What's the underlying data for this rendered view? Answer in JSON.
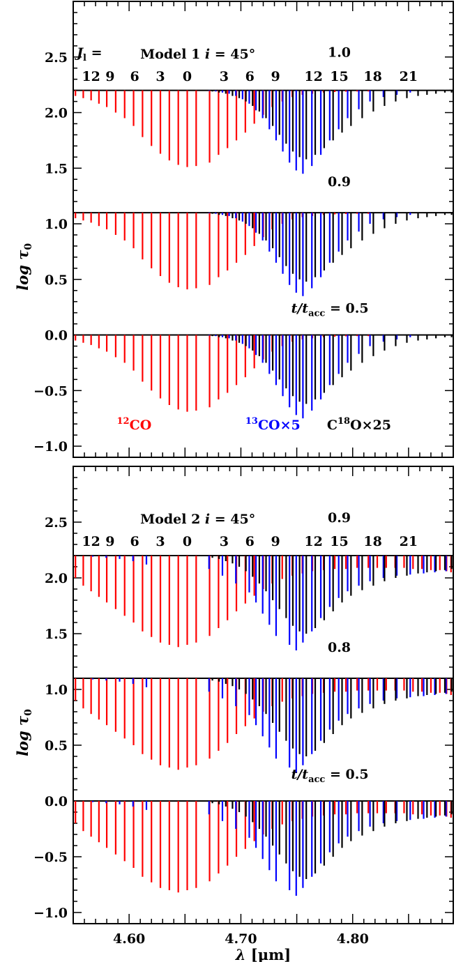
{
  "chart_data": [
    {
      "type": "line",
      "panel": "top",
      "model_label": "Model 1",
      "inclination_label": "i = 45°",
      "jl_prefix": "J",
      "jl_sub": "l",
      "jl_suffix": " =",
      "jl_ticks": [
        "12",
        "9",
        "6",
        "3",
        "0",
        "3",
        "6",
        "9",
        "12",
        "15",
        "18",
        "21"
      ],
      "jl_ticks_x_um": [
        4.566,
        4.583,
        4.605,
        4.628,
        4.652,
        4.685,
        4.708,
        4.731,
        4.765,
        4.788,
        4.818,
        4.85
      ],
      "xlabel_symbol": "λ",
      "xlabel_unit": "[μm]",
      "ylabel": "log τ0",
      "ylabel_symbol": "log τ",
      "ylabel_sub": "0",
      "xlim": [
        4.55,
        4.89
      ],
      "ylim": [
        -1.1,
        3.0
      ],
      "yticks": [
        "−1.0",
        "−0.5",
        "0.0",
        "0.5",
        "1.0",
        "1.5",
        "2.0",
        "2.5"
      ],
      "yticks_values": [
        -1.0,
        -0.5,
        0.0,
        0.5,
        1.0,
        1.5,
        2.0,
        2.5
      ],
      "stacks": [
        {
          "label": "1.0",
          "baseline": 2.2
        },
        {
          "label": "0.9",
          "baseline": 1.1
        },
        {
          "label": "0.5",
          "label_prefix": "t/t",
          "label_sub": "acc",
          "label_eq": " = ",
          "baseline": 0.0
        }
      ],
      "depths": {
        "co12": [
          0.05,
          0.07,
          0.09,
          0.12,
          0.15,
          0.2,
          0.25,
          0.32,
          0.42,
          0.5,
          0.57,
          0.63,
          0.67,
          0.69,
          0.68,
          0.65,
          0.58,
          0.52,
          0.45,
          0.38,
          0.3,
          0.22,
          0.15,
          0.1,
          0.06,
          0.04,
          0.03,
          0.02,
          0.015,
          0.012,
          0.01,
          0.01
        ],
        "co12_x_um": [
          4.552,
          4.559,
          4.566,
          4.573,
          4.58,
          4.588,
          4.596,
          4.604,
          4.612,
          4.62,
          4.628,
          4.636,
          4.644,
          4.652,
          4.66,
          4.672,
          4.68,
          4.688,
          4.696,
          4.704,
          4.712,
          4.72,
          4.728,
          4.737,
          4.746,
          4.755,
          4.764,
          4.774,
          4.784,
          4.794,
          4.804,
          4.814
        ],
        "co13": [
          0.005,
          0.01,
          0.02,
          0.03,
          0.05,
          0.08,
          0.12,
          0.18,
          0.25,
          0.35,
          0.45,
          0.55,
          0.65,
          0.72,
          0.75,
          0.68,
          0.58,
          0.45,
          0.35,
          0.25,
          0.17,
          0.1,
          0.06,
          0.04,
          0.02
        ],
        "co13_x_um": [
          4.67,
          4.676,
          4.682,
          4.688,
          4.694,
          4.7,
          4.706,
          4.712,
          4.718,
          4.724,
          4.73,
          4.736,
          4.742,
          4.748,
          4.754,
          4.762,
          4.77,
          4.778,
          4.786,
          4.794,
          4.804,
          4.814,
          4.826,
          4.838,
          4.85
        ],
        "c18o": [
          0.01,
          0.02,
          0.03,
          0.05,
          0.07,
          0.1,
          0.14,
          0.19,
          0.25,
          0.32,
          0.4,
          0.48,
          0.55,
          0.6,
          0.62,
          0.58,
          0.52,
          0.45,
          0.38,
          0.32,
          0.25,
          0.19,
          0.14,
          0.1,
          0.07,
          0.05,
          0.04,
          0.03,
          0.02,
          0.02
        ],
        "c18o_x_um": [
          4.676,
          4.682,
          4.688,
          4.694,
          4.7,
          4.706,
          4.712,
          4.718,
          4.724,
          4.73,
          4.736,
          4.742,
          4.748,
          4.754,
          4.76,
          4.768,
          4.776,
          4.784,
          4.792,
          4.8,
          4.81,
          4.82,
          4.83,
          4.84,
          4.85,
          4.86,
          4.868,
          4.876,
          4.884,
          4.89
        ]
      },
      "legend": {
        "co12": {
          "sup": "12",
          "text": "CO",
          "color": "#ff0000"
        },
        "co13": {
          "sup": "13",
          "text": "CO×5",
          "color": "#0000ff"
        },
        "c18o": {
          "pre": "C",
          "sup": "18",
          "text": "O×25",
          "color": "#000000"
        }
      }
    },
    {
      "type": "line",
      "panel": "bottom",
      "model_label": "Model 2",
      "inclination_label": "i = 45°",
      "jl_ticks": [
        "12",
        "9",
        "6",
        "3",
        "0",
        "3",
        "6",
        "9",
        "12",
        "15",
        "18",
        "21"
      ],
      "jl_ticks_x_um": [
        4.566,
        4.583,
        4.605,
        4.628,
        4.652,
        4.685,
        4.708,
        4.731,
        4.765,
        4.788,
        4.818,
        4.85
      ],
      "xlabel_symbol": "λ",
      "xlabel_unit": "[μm]",
      "ylabel": "log τ0",
      "ylabel_symbol": "log τ",
      "ylabel_sub": "0",
      "xlim": [
        4.55,
        4.89
      ],
      "ylim": [
        -1.1,
        3.0
      ],
      "xticks": [
        "4.60",
        "4.70",
        "4.80"
      ],
      "xticks_values": [
        4.6,
        4.7,
        4.8
      ],
      "yticks": [
        "−1.0",
        "−0.5",
        "0.0",
        "0.5",
        "1.0",
        "1.5",
        "2.0",
        "2.5"
      ],
      "yticks_values": [
        -1.0,
        -0.5,
        0.0,
        0.5,
        1.0,
        1.5,
        2.0,
        2.5
      ],
      "stacks": [
        {
          "label": "0.9",
          "baseline": 2.2
        },
        {
          "label": "0.8",
          "baseline": 1.1
        },
        {
          "label": "0.5",
          "label_prefix": "t/t",
          "label_sub": "acc",
          "label_eq": " = ",
          "baseline": 0.0
        }
      ],
      "depths": {
        "co12": [
          0.2,
          0.27,
          0.32,
          0.37,
          0.42,
          0.48,
          0.54,
          0.6,
          0.68,
          0.73,
          0.78,
          0.8,
          0.82,
          0.8,
          0.78,
          0.72,
          0.65,
          0.58,
          0.5,
          0.43,
          0.36,
          0.3,
          0.25,
          0.21,
          0.18,
          0.16,
          0.14,
          0.13,
          0.12,
          0.12,
          0.11,
          0.11,
          0.11,
          0.11,
          0.11,
          0.11,
          0.12,
          0.12,
          0.13,
          0.13,
          0.14,
          0.15,
          0.16
        ],
        "co12_x_um": [
          4.552,
          4.559,
          4.566,
          4.573,
          4.58,
          4.588,
          4.596,
          4.604,
          4.612,
          4.62,
          4.628,
          4.636,
          4.644,
          4.652,
          4.66,
          4.672,
          4.68,
          4.688,
          4.696,
          4.704,
          4.712,
          4.72,
          4.728,
          4.737,
          4.746,
          4.755,
          4.764,
          4.774,
          4.784,
          4.794,
          4.804,
          4.814,
          4.822,
          4.83,
          4.838,
          4.846,
          4.854,
          4.862,
          4.87,
          4.878,
          4.884,
          4.888,
          4.89
        ],
        "co13": [
          0.01,
          0.02,
          0.03,
          0.05,
          0.08,
          0.12,
          0.18,
          0.25,
          0.33,
          0.42,
          0.52,
          0.62,
          0.72,
          0.8,
          0.85,
          0.78,
          0.68,
          0.56,
          0.46,
          0.38,
          0.32,
          0.27,
          0.23,
          0.2,
          0.18,
          0.17,
          0.16,
          0.15,
          0.14,
          0.13
        ],
        "co13_x_um": [
          4.566,
          4.578,
          4.59,
          4.602,
          4.614,
          4.67,
          4.682,
          4.694,
          4.706,
          4.712,
          4.718,
          4.724,
          4.73,
          4.742,
          4.748,
          4.754,
          4.762,
          4.77,
          4.778,
          4.786,
          4.794,
          4.804,
          4.814,
          4.826,
          4.838,
          4.85,
          4.862,
          4.872,
          4.882,
          4.89
        ],
        "c18o": [
          0.02,
          0.03,
          0.05,
          0.07,
          0.1,
          0.14,
          0.19,
          0.25,
          0.32,
          0.4,
          0.48,
          0.56,
          0.63,
          0.68,
          0.7,
          0.65,
          0.58,
          0.5,
          0.42,
          0.36,
          0.31,
          0.27,
          0.23,
          0.2,
          0.18,
          0.16,
          0.15,
          0.14,
          0.13,
          0.12
        ],
        "c18o_x_um": [
          4.676,
          4.682,
          4.688,
          4.694,
          4.7,
          4.706,
          4.712,
          4.718,
          4.724,
          4.73,
          4.736,
          4.742,
          4.748,
          4.754,
          4.76,
          4.768,
          4.776,
          4.784,
          4.792,
          4.8,
          4.81,
          4.82,
          4.83,
          4.84,
          4.85,
          4.86,
          4.868,
          4.876,
          4.884,
          4.89
        ]
      }
    }
  ]
}
